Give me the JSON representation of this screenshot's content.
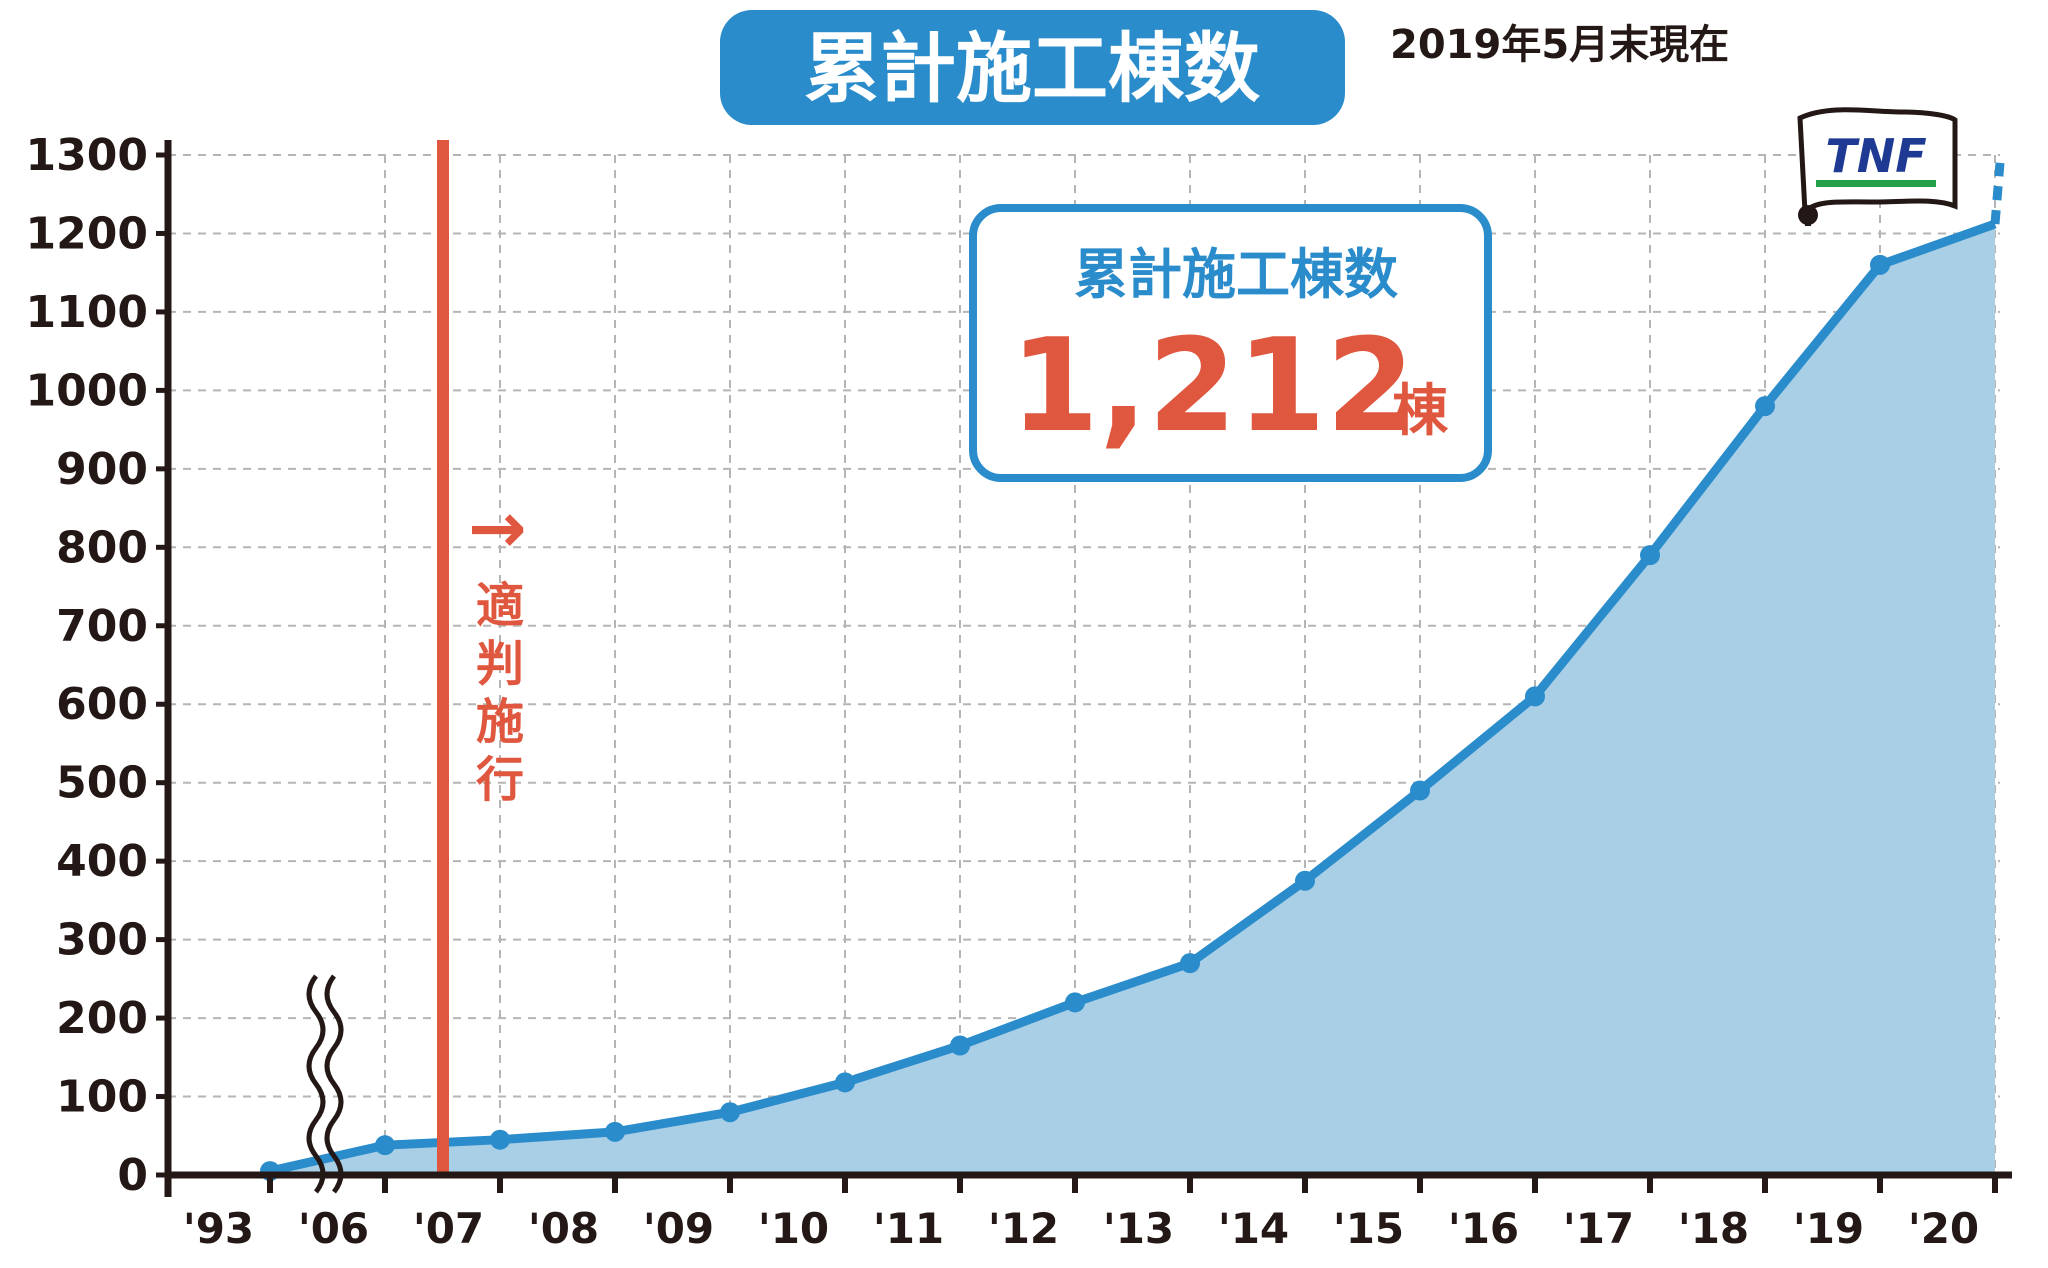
{
  "chart_data": {
    "type": "area",
    "title": "累計施工棟数",
    "as_of": "2019年5月末現在",
    "categories": [
      "'93",
      "'06",
      "'07",
      "'08",
      "'09",
      "'10",
      "'11",
      "'12",
      "'13",
      "'14",
      "'15",
      "'16",
      "'17",
      "'18",
      "'19",
      "'20"
    ],
    "ylim": [
      0,
      1300
    ],
    "y_ticks": [
      "0",
      "100",
      "200",
      "300",
      "400",
      "500",
      "600",
      "700",
      "800",
      "900",
      "1000",
      "1100",
      "1200",
      "1300"
    ],
    "grid": true,
    "series": [
      {
        "values": [
          5,
          38,
          45,
          55,
          80,
          118,
          165,
          220,
          270,
          375,
          490,
          610,
          790,
          980,
          1160,
          1212
        ],
        "color": "#2b8ccb",
        "fill": "#a8cfe6"
      }
    ],
    "projection": {
      "from": 1212,
      "to": 1290,
      "style": "dashed"
    },
    "annotations": {
      "law_label": "適判施行",
      "law_arrow": "→",
      "law_color": "#e0573f",
      "callout_title": "累計施工棟数",
      "callout_value": "1,212",
      "callout_unit": "棟",
      "flag_text": "TNF"
    },
    "colors": {
      "title_bg": "#2b8ccb",
      "line": "#2b8ccb",
      "area": "#a8cfe6",
      "accent": "#e0573f",
      "axis": "#231815",
      "flag_text": "#1f3a93",
      "flag_stripe": "#22a04a"
    }
  }
}
